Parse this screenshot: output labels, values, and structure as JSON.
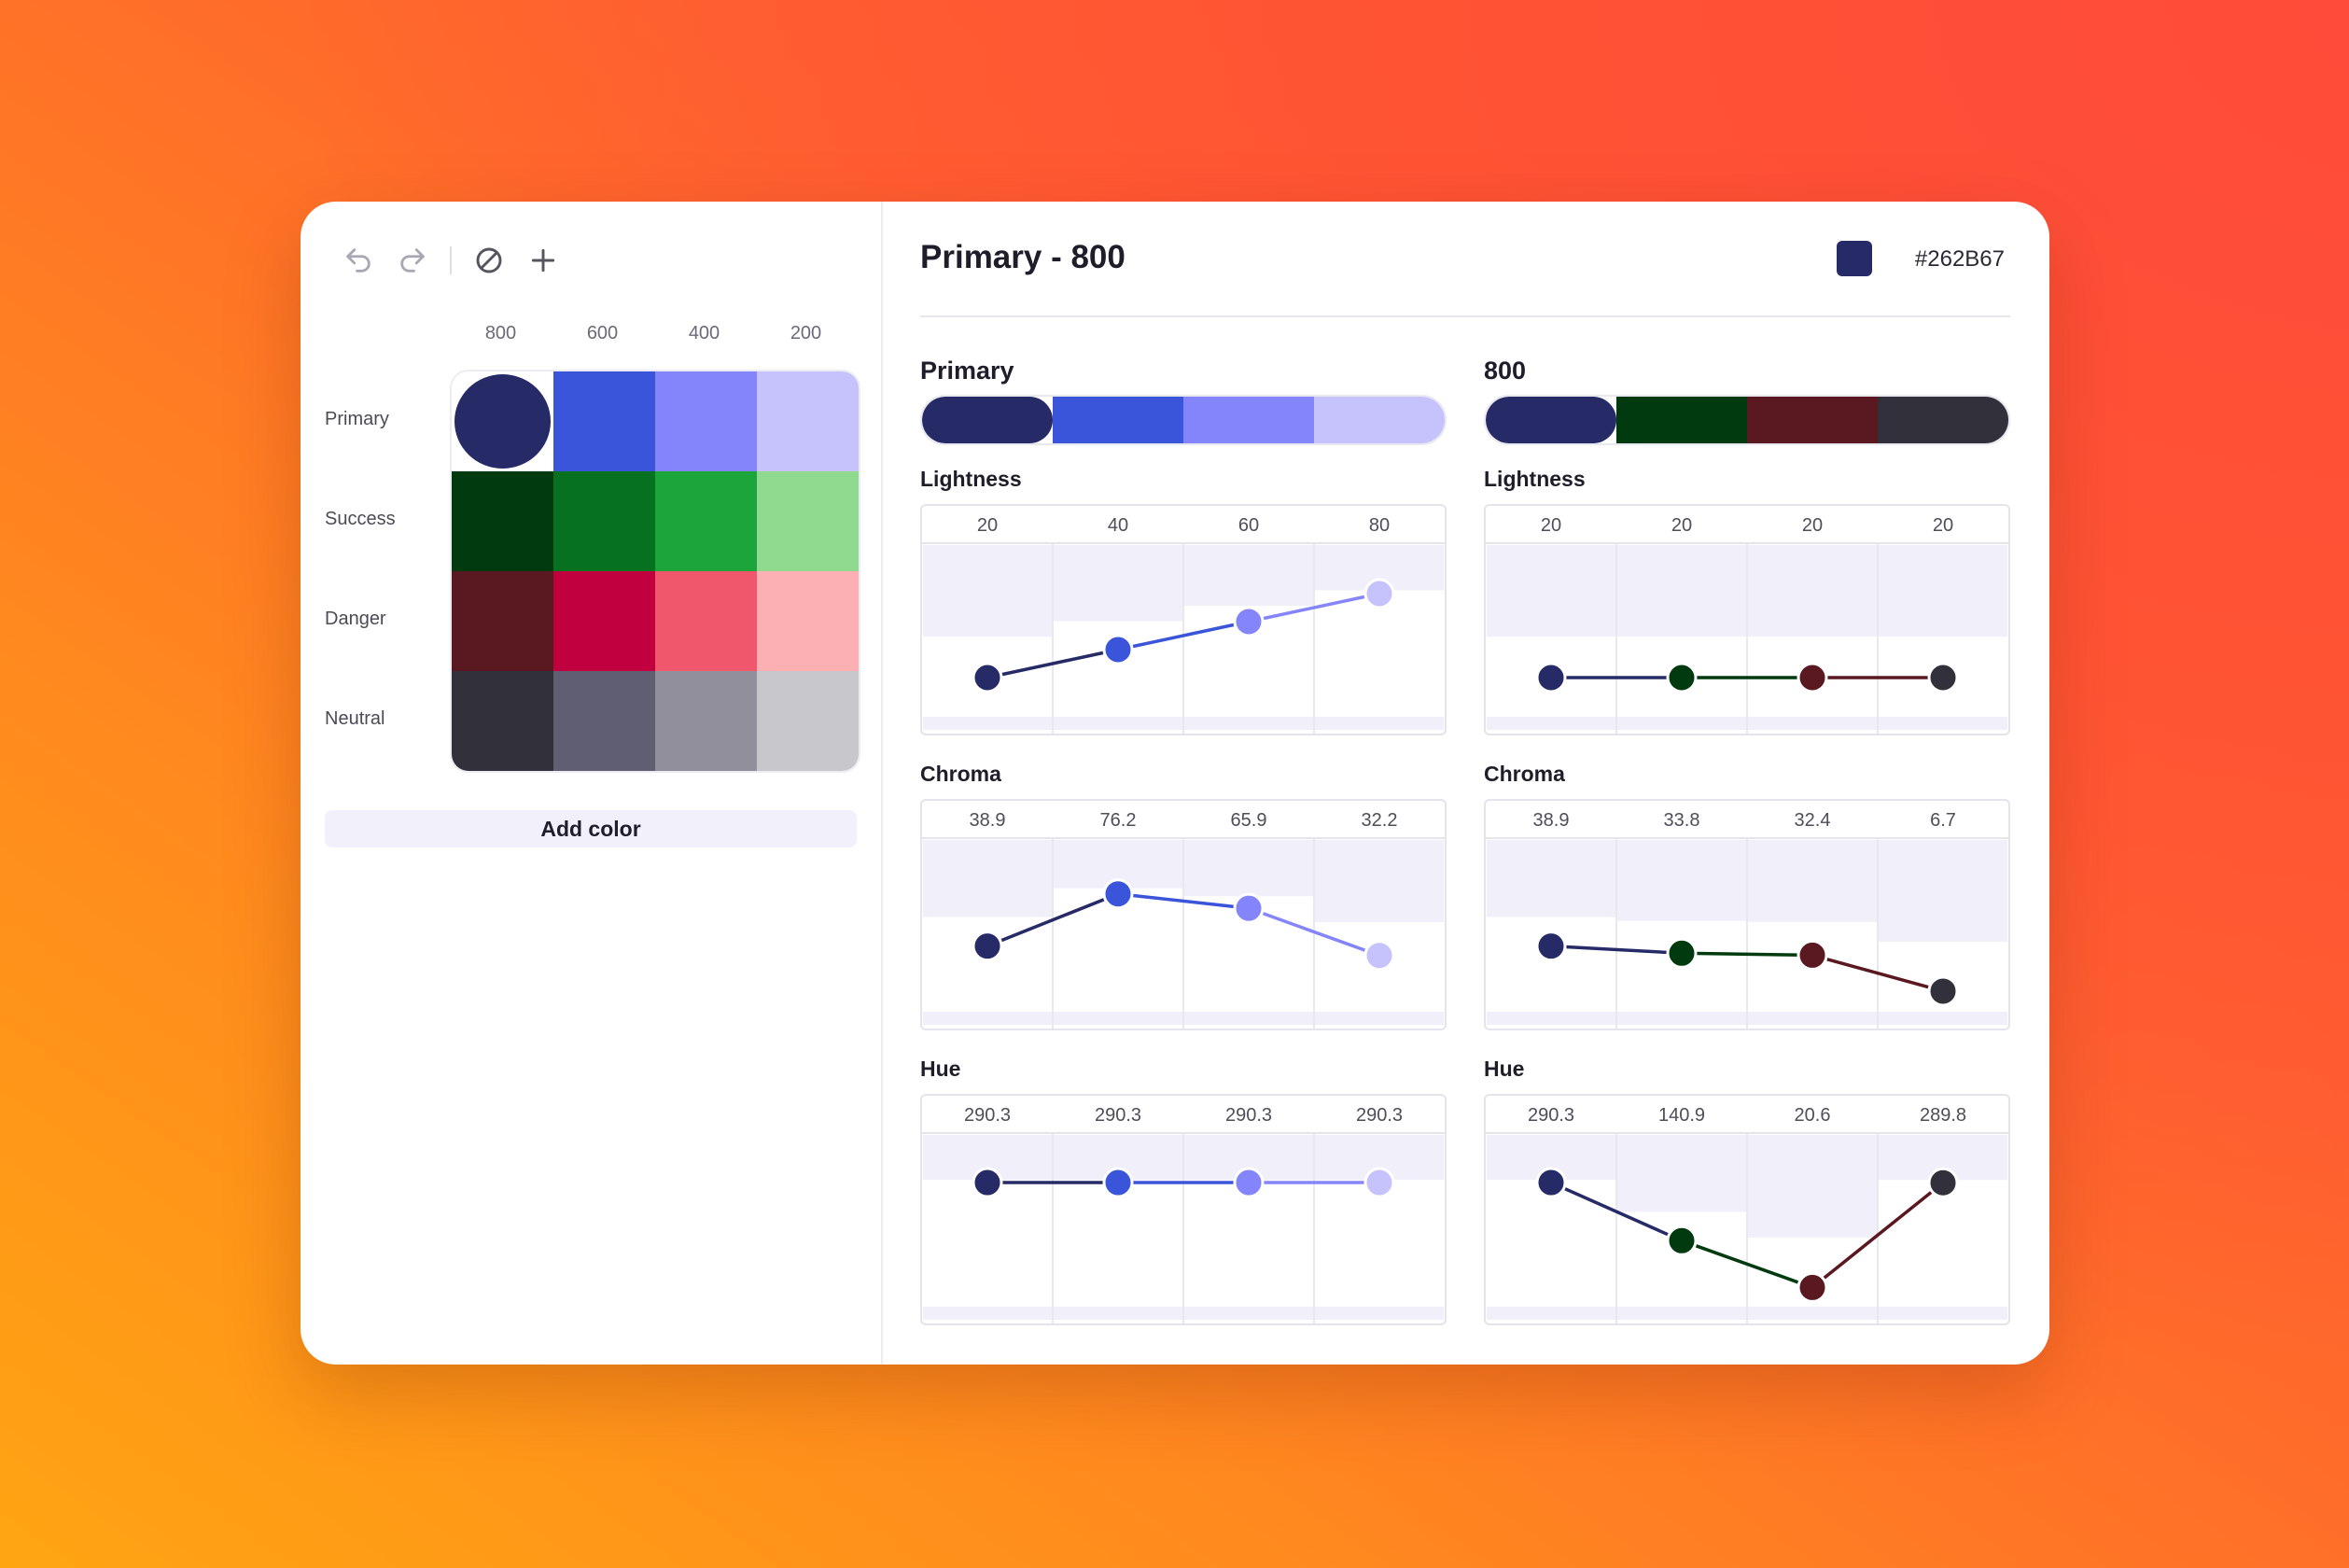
{
  "toolbar": {
    "undo_icon": "undo-icon",
    "redo_icon": "redo-icon",
    "clear_icon": "slash-circle-icon",
    "add_icon": "plus-icon"
  },
  "palette": {
    "columns": [
      "800",
      "600",
      "400",
      "200"
    ],
    "rows": [
      {
        "label": "Primary",
        "colors": [
          "#262B67",
          "#3B55DA",
          "#8585FB",
          "#C6C3FC"
        ]
      },
      {
        "label": "Success",
        "colors": [
          "#013A0E",
          "#067220",
          "#1CA53A",
          "#8FDA8F"
        ]
      },
      {
        "label": "Danger",
        "colors": [
          "#5A1820",
          "#C0003F",
          "#F0566C",
          "#FDB0B4"
        ]
      },
      {
        "label": "Neutral",
        "colors": [
          "#31303B",
          "#5F5E72",
          "#908F9B",
          "#C8C7CB"
        ]
      }
    ],
    "selected": {
      "row": 0,
      "col": 0
    },
    "add_label": "Add color"
  },
  "header": {
    "title": "Primary - 800",
    "hex": "#262B67",
    "swatch_color": "#262B67"
  },
  "panels": [
    {
      "title": "Primary",
      "colors": [
        "#262B67",
        "#3B55DA",
        "#8585FB",
        "#C6C3FC"
      ],
      "metrics": [
        {
          "name": "Lightness",
          "labels": [
            "20",
            "40",
            "60",
            "80"
          ],
          "values": [
            20,
            40,
            60,
            80
          ],
          "range": [
            0,
            100
          ]
        },
        {
          "name": "Chroma",
          "labels": [
            "38.9",
            "76.2",
            "65.9",
            "32.2"
          ],
          "values": [
            38.9,
            76.2,
            65.9,
            32.2
          ],
          "range": [
            0,
            100
          ]
        },
        {
          "name": "Hue",
          "labels": [
            "290.3",
            "290.3",
            "290.3",
            "290.3"
          ],
          "values": [
            290.3,
            290.3,
            290.3,
            290.3
          ],
          "range": [
            0,
            360
          ]
        }
      ]
    },
    {
      "title": "800",
      "colors": [
        "#262B67",
        "#013A0E",
        "#5A1820",
        "#31303B"
      ],
      "metrics": [
        {
          "name": "Lightness",
          "labels": [
            "20",
            "20",
            "20",
            "20"
          ],
          "values": [
            20,
            20,
            20,
            20
          ],
          "range": [
            0,
            100
          ]
        },
        {
          "name": "Chroma",
          "labels": [
            "38.9",
            "33.8",
            "32.4",
            "6.7"
          ],
          "values": [
            38.9,
            33.8,
            32.4,
            6.7
          ],
          "range": [
            0,
            100
          ]
        },
        {
          "name": "Hue",
          "labels": [
            "290.3",
            "140.9",
            "20.6",
            "289.8"
          ],
          "values": [
            290.3,
            140.9,
            20.6,
            289.8
          ],
          "range": [
            0,
            360
          ]
        }
      ]
    }
  ]
}
